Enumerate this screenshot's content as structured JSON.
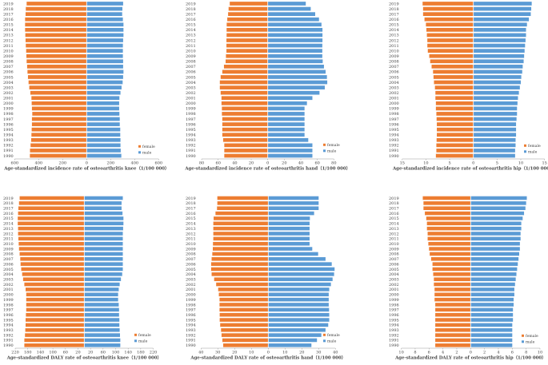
{
  "colors": {
    "female": "#ED7D31",
    "male": "#5B9BD5"
  },
  "years": [
    1990,
    1991,
    1992,
    1993,
    1994,
    1995,
    1996,
    1997,
    1998,
    1999,
    2000,
    2001,
    2002,
    2003,
    2004,
    2005,
    2006,
    2007,
    2008,
    2009,
    2010,
    2011,
    2012,
    2013,
    2014,
    2015,
    2016,
    2017,
    2018,
    2019
  ],
  "chart_data": [
    {
      "type": "bar",
      "orientation": "horizontal-butterfly",
      "title": "Age-standardized  incidence rate of osteoarthritis knee（1/100 000）",
      "xlim": [
        -600,
        600
      ],
      "ticks": [
        -600,
        -400,
        -200,
        0,
        200,
        400,
        600
      ],
      "tick_labels": [
        "600",
        "400",
        "200",
        "0",
        "200",
        "400",
        "600"
      ],
      "legend": [
        "female",
        "male"
      ],
      "legend_position": "bottom-right",
      "series": [
        {
          "name": "female",
          "values": [
            473,
            472,
            467,
            462,
            460,
            458,
            456,
            456,
            453,
            456,
            458,
            460,
            469,
            478,
            484,
            489,
            493,
            496,
            500,
            502,
            504,
            507,
            509,
            511,
            513,
            513,
            513,
            509,
            507,
            500
          ]
        },
        {
          "name": "male",
          "values": [
            289,
            284,
            282,
            282,
            280,
            280,
            276,
            276,
            273,
            271,
            271,
            273,
            282,
            291,
            300,
            304,
            307,
            304,
            304,
            302,
            302,
            302,
            304,
            307,
            307,
            307,
            302,
            296,
            298,
            304
          ]
        }
      ]
    },
    {
      "type": "bar",
      "orientation": "horizontal-butterfly",
      "title": "Age-standardized  incidence rate of osteoarthritis hand（1/100 000）",
      "xlim": [
        -80,
        80
      ],
      "ticks": [
        -80,
        -60,
        -40,
        -20,
        0,
        20,
        40,
        60,
        80
      ],
      "tick_labels": [
        "80",
        "60",
        "40",
        "20",
        "0",
        "20",
        "40",
        "60",
        "80"
      ],
      "legend": [
        "female",
        "male"
      ],
      "legend_position": "bottom-right",
      "series": [
        {
          "name": "female",
          "values": [
            52.6,
            52.6,
            52.6,
            54,
            55,
            55,
            55,
            55,
            55.5,
            55.5,
            56,
            56,
            57,
            58,
            58,
            57,
            55,
            53,
            51,
            50.6,
            50,
            50,
            50,
            49.8,
            49.8,
            49.7,
            49,
            48,
            47.4,
            46
          ]
        },
        {
          "name": "male",
          "values": [
            54,
            54,
            54,
            49,
            44.5,
            44.5,
            44.5,
            44.5,
            44.5,
            44.5,
            47.4,
            54,
            62.6,
            69,
            72,
            71.6,
            70,
            68,
            66.5,
            66,
            66,
            66,
            66.2,
            66.2,
            66.2,
            65,
            62,
            57.4,
            52,
            46
          ]
        }
      ]
    },
    {
      "type": "bar",
      "orientation": "horizontal-butterfly",
      "title": "Age-standardized  incidence rate of osteoarthritis hip（1/100 000）",
      "xlim": [
        -15,
        15
      ],
      "ticks": [
        -15,
        -10,
        -5,
        0,
        5,
        10,
        15
      ],
      "tick_labels": [
        "15",
        "10",
        "5",
        "0",
        "5",
        "10",
        "15"
      ],
      "legend": [
        "female",
        "male"
      ],
      "legend_position": "bottom-right",
      "series": [
        {
          "name": "female",
          "values": [
            7.9,
            7.8,
            7.8,
            7.75,
            7.7,
            7.7,
            7.7,
            7.75,
            7.8,
            7.9,
            7.9,
            8.0,
            8.0,
            8.1,
            8.3,
            8.4,
            8.5,
            8.8,
            9.1,
            9.3,
            9.6,
            9.7,
            9.7,
            9.8,
            9.9,
            10.0,
            10.3,
            10.6,
            10.6,
            10.7
          ]
        },
        {
          "name": "male",
          "values": [
            8.8,
            8.8,
            8.9,
            8.9,
            9.0,
            9.0,
            9.0,
            9.1,
            9.2,
            9.2,
            9.3,
            9.4,
            9.6,
            9.8,
            10.0,
            10.1,
            10.3,
            10.4,
            10.6,
            10.7,
            10.8,
            10.9,
            11.0,
            11.1,
            11.1,
            11.3,
            11.7,
            12.1,
            12.2,
            12.3
          ]
        }
      ]
    },
    {
      "type": "bar",
      "orientation": "horizontal-butterfly",
      "title": "Age-standardized  DALY rate of osteoarthritis knee（1/100 000）",
      "xlim": [
        -220,
        220
      ],
      "ticks": [
        -220,
        -180,
        -140,
        -100,
        -60,
        -20,
        20,
        60,
        100,
        140,
        180,
        220
      ],
      "tick_labels": [
        "220",
        "180",
        "140",
        "100",
        "60",
        "20",
        "20",
        "60",
        "100",
        "140",
        "180",
        "220"
      ],
      "legend": [
        "female",
        "male"
      ],
      "legend_position": "bottom-right",
      "series": [
        {
          "name": "female",
          "values": [
            191,
            191,
            189,
            188,
            187,
            187,
            186,
            185,
            185,
            185,
            185,
            187,
            191,
            195,
            198,
            201,
            203,
            204,
            206,
            208,
            209,
            210,
            211,
            211,
            212,
            212,
            211,
            210,
            208,
            206
          ]
        },
        {
          "name": "male",
          "values": [
            115,
            115,
            114,
            113,
            112,
            112,
            111,
            111,
            110,
            108,
            108,
            110,
            113,
            117,
            121,
            123,
            123,
            123,
            123,
            123,
            123,
            123,
            123,
            124,
            125,
            125,
            122,
            119,
            119,
            123
          ]
        }
      ]
    },
    {
      "type": "bar",
      "orientation": "horizontal-butterfly",
      "title": "Age-standardized  DALY rate of osteoarthritis hand（1/100 000）",
      "xlim": [
        -40,
        40
      ],
      "ticks": [
        -40,
        -30,
        -20,
        -10,
        0,
        10,
        20,
        30,
        40
      ],
      "tick_labels": [
        "40",
        "30",
        "20",
        "10",
        "0",
        "10",
        "20",
        "30",
        "40"
      ],
      "legend": [
        "female",
        "male"
      ],
      "legend_position": "bottom-right",
      "series": [
        {
          "name": "female",
          "values": [
            26.8,
            27.3,
            27.8,
            28.1,
            28.6,
            28.9,
            28.9,
            29,
            29,
            29,
            29.4,
            29.8,
            31,
            32.2,
            33.7,
            34,
            34,
            33.7,
            33.3,
            33,
            32.9,
            32.7,
            32.7,
            32.7,
            32.7,
            32.5,
            31.4,
            30.5,
            30.3,
            30.3
          ]
        },
        {
          "name": "male",
          "values": [
            25.7,
            29,
            31.6,
            34.1,
            35.7,
            36.3,
            36.3,
            36.2,
            36,
            36,
            36,
            36.3,
            37.3,
            38.3,
            39.2,
            39.5,
            37.8,
            34.1,
            29.7,
            26.2,
            24.6,
            24.6,
            24.6,
            24.6,
            24.6,
            24.8,
            27.3,
            30,
            30,
            30
          ]
        }
      ]
    },
    {
      "type": "bar",
      "orientation": "horizontal-butterfly",
      "title": "Age-standardized  DALY rate of osteoarthritis hip（1/100 000）",
      "xlim": [
        -10,
        10
      ],
      "ticks": [
        -10,
        -8,
        -6,
        -4,
        -2,
        0,
        2,
        4,
        6,
        8,
        10
      ],
      "tick_labels": [
        "10",
        "8",
        "6",
        "4",
        "2",
        "0",
        "2",
        "4",
        "6",
        "8",
        "10"
      ],
      "legend": [
        "female",
        "male"
      ],
      "legend_position": "bottom-right",
      "series": [
        {
          "name": "female",
          "values": [
            5.1,
            5.1,
            5.1,
            5.1,
            5.1,
            5.1,
            5.1,
            5.1,
            5.1,
            5.2,
            5.2,
            5.2,
            5.3,
            5.3,
            5.4,
            5.5,
            5.5,
            5.7,
            5.9,
            6.0,
            6.1,
            6.2,
            6.2,
            6.3,
            6.3,
            6.4,
            6.6,
            6.8,
            6.8,
            6.9
          ]
        },
        {
          "name": "male",
          "values": [
            6.0,
            6.0,
            6.0,
            6.0,
            6.0,
            6.1,
            6.1,
            6.1,
            6.2,
            6.2,
            6.3,
            6.3,
            6.4,
            6.5,
            6.6,
            6.7,
            6.8,
            6.9,
            7.0,
            7.1,
            7.1,
            7.2,
            7.2,
            7.3,
            7.3,
            7.5,
            7.7,
            7.9,
            8.0,
            8.1
          ]
        }
      ]
    }
  ]
}
